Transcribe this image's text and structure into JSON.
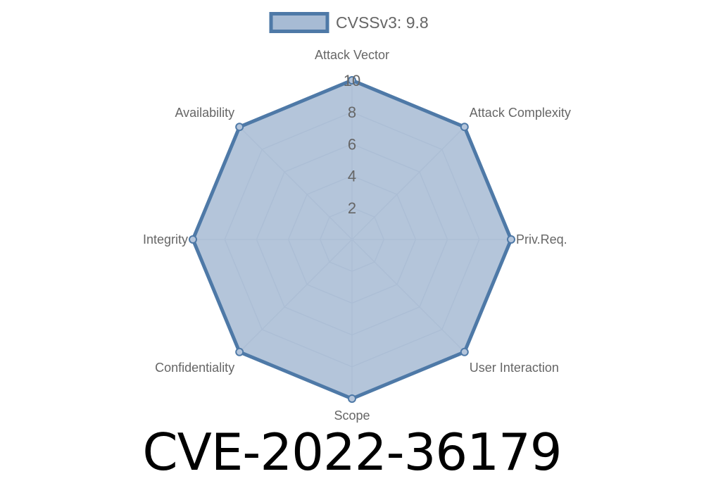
{
  "chart_data": {
    "type": "radar",
    "axes": [
      "Attack Vector",
      "Attack Complexity",
      "Priv.Req.",
      "User Interaction",
      "Scope",
      "Confidentiality",
      "Integrity",
      "Availability"
    ],
    "series": [
      {
        "name": "CVSSv3: 9.8",
        "values": [
          10,
          10,
          10,
          10,
          10,
          10,
          10,
          10
        ]
      }
    ],
    "rlim": [
      0,
      10
    ],
    "ticks": [
      "2",
      "4",
      "6",
      "8",
      "10"
    ],
    "legend": "top",
    "grid": true,
    "colors": {
      "fill": "#a7bbd4",
      "stroke": "#4e79a7",
      "grid": "#c8d0da"
    }
  },
  "title": "CVE-2022-36179"
}
